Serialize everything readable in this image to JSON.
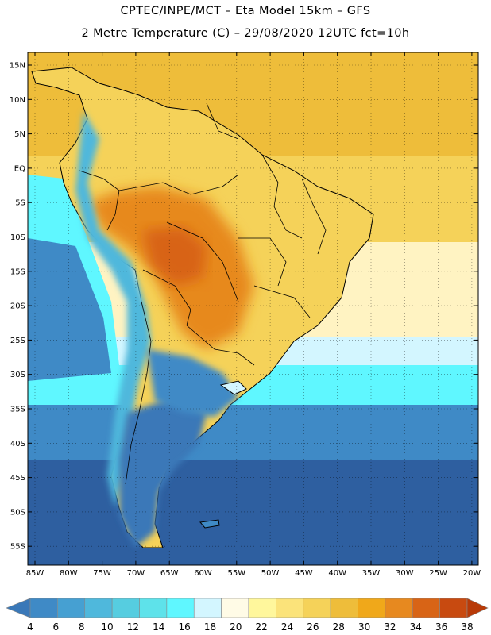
{
  "title": {
    "line1": "CPTEC/INPE/MCT –  Eta Model 15km – GFS",
    "line2": "2 Metre Temperature (C) – 29/08/2020 12UTC fct=10h"
  },
  "lat_labels": [
    "15N",
    "10N",
    "5N",
    "EQ",
    "5S",
    "10S",
    "15S",
    "20S",
    "25S",
    "30S",
    "35S",
    "40S",
    "45S",
    "50S",
    "55S"
  ],
  "lon_labels": [
    "85W",
    "80W",
    "75W",
    "70W",
    "65W",
    "60W",
    "55W",
    "50W",
    "45W",
    "40W",
    "35W",
    "30W",
    "25W",
    "20W"
  ],
  "colorbar": {
    "labels": [
      "4",
      "6",
      "8",
      "10",
      "12",
      "14",
      "16",
      "18",
      "20",
      "22",
      "24",
      "26",
      "28",
      "30",
      "32",
      "34",
      "36",
      "38"
    ],
    "colors": [
      "#3a78b8",
      "#3f8ac6",
      "#46a0d2",
      "#4fb8dc",
      "#56cde0",
      "#5ee2ea",
      "#5ff7ff",
      "#d3f6ff",
      "#fffbe6",
      "#fff79c",
      "#fbe37a",
      "#f5d259",
      "#eebd3a",
      "#f0a81a",
      "#e7891f",
      "#d86416",
      "#c84a10",
      "#b83a08"
    ]
  },
  "map_colors": {
    "ocean_south": "#2e5fa0",
    "ocean_mid": "#3f8ac6",
    "ocean_cyan": "#5ff7ff",
    "ocean_light": "#d3f6ff",
    "ocean_warm": "#fff3c2",
    "ocean_yellow": "#f5d259",
    "tropics": "#eebd3a",
    "land_hot": "#e7891f",
    "land_hotter": "#d86416",
    "andes": "#4fb8dc",
    "patagonia": "#3a78b8",
    "coast": "#000000"
  }
}
